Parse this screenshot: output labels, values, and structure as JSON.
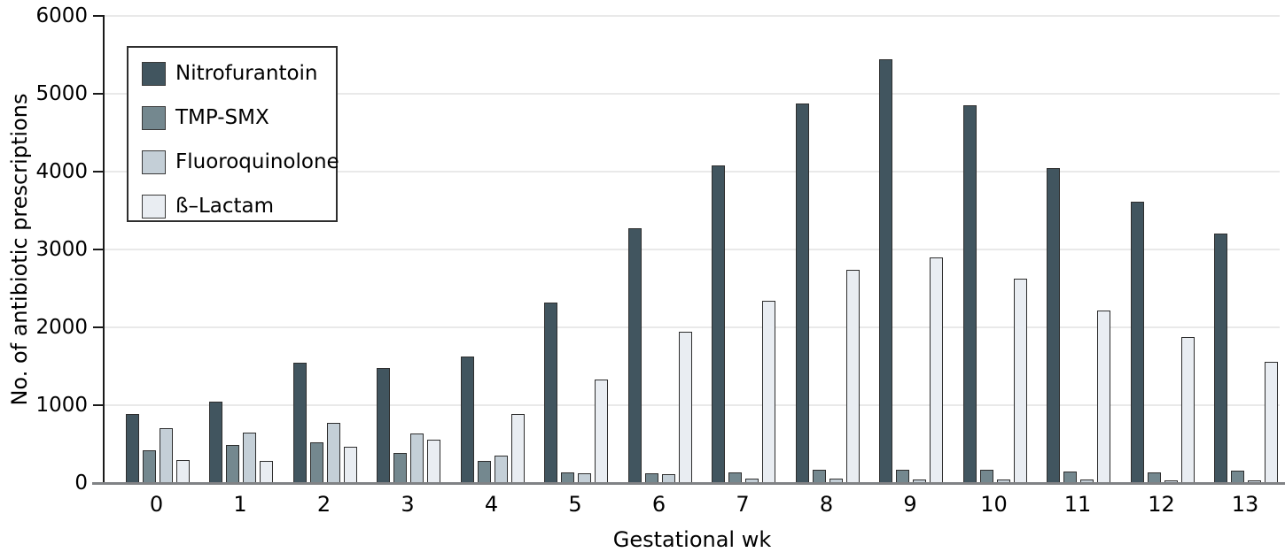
{
  "chart_data": {
    "type": "bar",
    "title": "",
    "xlabel": "Gestational wk",
    "ylabel": "No. of antibiotic prescriptions",
    "categories": [
      "0",
      "1",
      "2",
      "3",
      "4",
      "5",
      "6",
      "7",
      "8",
      "9",
      "10",
      "11",
      "12",
      "13"
    ],
    "series": [
      {
        "name": "Nitrofurantoin",
        "color": "#41555f",
        "values": [
          890,
          1040,
          1550,
          1480,
          1630,
          2320,
          3270,
          4080,
          4880,
          5440,
          4850,
          4050,
          3610,
          3210
        ]
      },
      {
        "name": "TMP-SMX",
        "color": "#74888f",
        "values": [
          420,
          490,
          520,
          390,
          280,
          140,
          130,
          140,
          170,
          170,
          170,
          150,
          140,
          160
        ]
      },
      {
        "name": "Fluoroquinolone",
        "color": "#c4cfd7",
        "values": [
          700,
          650,
          770,
          640,
          350,
          120,
          110,
          60,
          60,
          50,
          50,
          40,
          35,
          35
        ]
      },
      {
        "name": "ß–Lactam",
        "color": "#e9edf2",
        "values": [
          290,
          280,
          470,
          560,
          890,
          1330,
          1940,
          2340,
          2740,
          2900,
          2630,
          2220,
          1870,
          1560
        ]
      }
    ],
    "y_ticks": [
      0,
      1000,
      2000,
      3000,
      4000,
      5000,
      6000
    ],
    "ylim": [
      0,
      6000
    ],
    "grid": true,
    "legend_position": "top-left",
    "colors": {
      "axis_y": "#1a1a1a",
      "axis_x": "#808285",
      "gridline": "#e9e9e9",
      "background": "#ffffff"
    }
  }
}
